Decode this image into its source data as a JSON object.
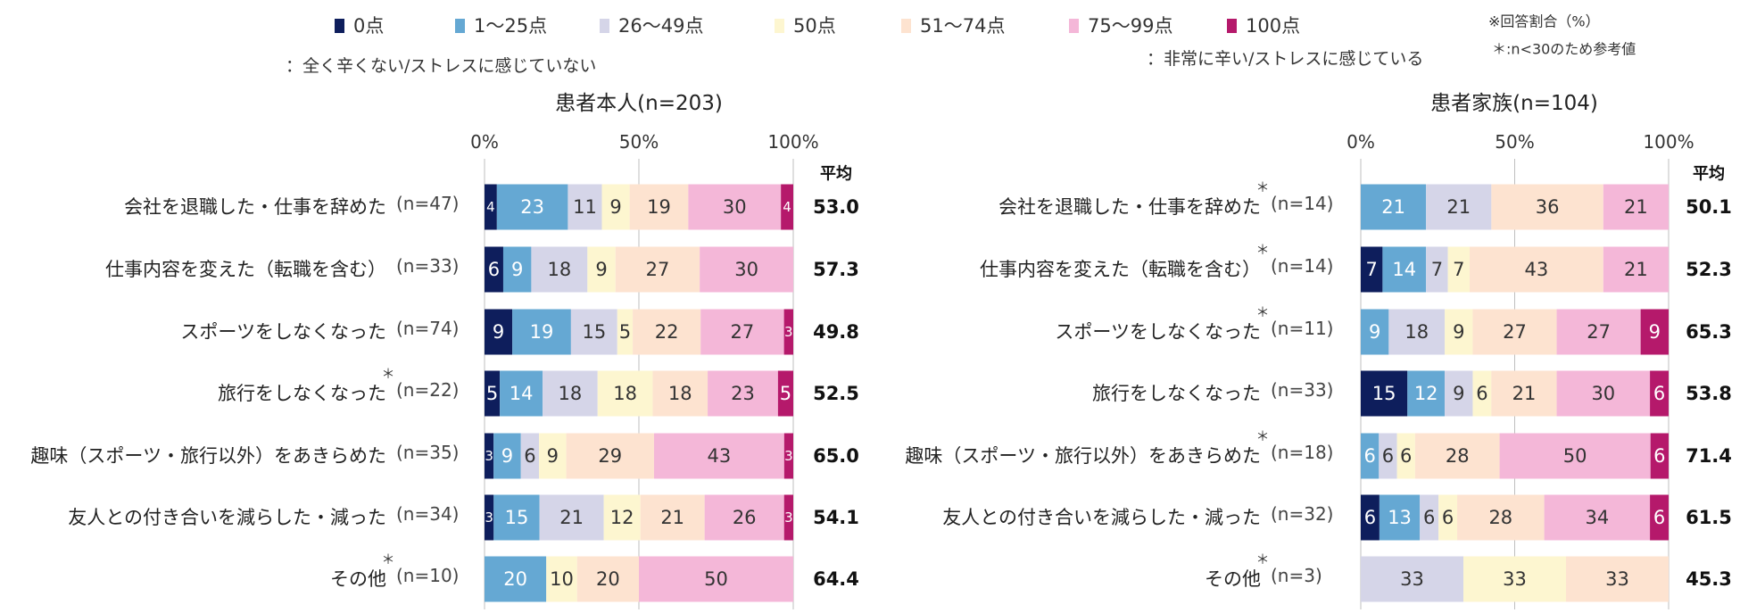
{
  "legend": {
    "items": [
      {
        "label": "0点",
        "color": "#0e1e5c"
      },
      {
        "label": "1〜25点",
        "color": "#65a8d3"
      },
      {
        "label": "26〜49点",
        "color": "#d5d5e8"
      },
      {
        "label": "50点",
        "color": "#fdf6d0"
      },
      {
        "label": "51〜74点",
        "color": "#fde3d0"
      },
      {
        "label": "75〜99点",
        "color": "#f4b7d8"
      },
      {
        "label": "100点",
        "color": "#b5196b"
      }
    ],
    "low_note": "：全く辛くない/ストレスに感じていない",
    "high_note": "：非常に辛い/ストレスに感じている",
    "note_ratio": "※回答割合（%）",
    "note_small_n": "＊:n<30のため参考値"
  },
  "avg_header": "平均",
  "chart_data": [
    {
      "type": "bar",
      "orientation": "horizontal-stacked-100",
      "title": "患者本人(n=203)",
      "ticks": [
        "0%",
        "50%",
        "100%"
      ],
      "xlim": [
        0,
        100
      ],
      "series_names": [
        "0点",
        "1〜25点",
        "26〜49点",
        "50点",
        "51〜74点",
        "75〜99点",
        "100点"
      ],
      "categories": [
        {
          "label": "会社を退職した・仕事を辞めた",
          "n": "(n=47)",
          "star": false,
          "values": [
            4,
            23,
            11,
            9,
            19,
            30,
            4
          ],
          "avg": "53.0"
        },
        {
          "label": "仕事内容を変えた（転職を含む）",
          "n": "(n=33)",
          "star": false,
          "values": [
            6,
            9,
            18,
            9,
            27,
            30,
            0
          ],
          "avg": "57.3"
        },
        {
          "label": "スポーツをしなくなった",
          "n": "(n=74)",
          "star": false,
          "values": [
            9,
            19,
            15,
            5,
            22,
            27,
            3
          ],
          "avg": "49.8"
        },
        {
          "label": "旅行をしなくなった",
          "n": "(n=22)",
          "star": true,
          "values": [
            5,
            14,
            18,
            18,
            18,
            23,
            5
          ],
          "avg": "52.5"
        },
        {
          "label": "趣味（スポーツ・旅行以外）をあきらめた",
          "n": "(n=35)",
          "star": false,
          "values": [
            3,
            9,
            6,
            9,
            29,
            43,
            3
          ],
          "avg": "65.0"
        },
        {
          "label": "友人との付き合いを減らした・減った",
          "n": "(n=34)",
          "star": false,
          "values": [
            3,
            15,
            21,
            12,
            21,
            26,
            3
          ],
          "avg": "54.1"
        },
        {
          "label": "その他",
          "n": "(n=10)",
          "star": true,
          "values": [
            0,
            20,
            0,
            10,
            20,
            50,
            0
          ],
          "avg": "64.4"
        }
      ]
    },
    {
      "type": "bar",
      "orientation": "horizontal-stacked-100",
      "title": "患者家族(n=104)",
      "ticks": [
        "0%",
        "50%",
        "100%"
      ],
      "xlim": [
        0,
        100
      ],
      "series_names": [
        "0点",
        "1〜25点",
        "26〜49点",
        "50点",
        "51〜74点",
        "75〜99点",
        "100点"
      ],
      "categories": [
        {
          "label": "会社を退職した・仕事を辞めた",
          "n": "(n=14)",
          "star": true,
          "values": [
            0,
            21,
            21,
            0,
            36,
            21,
            0
          ],
          "avg": "50.1"
        },
        {
          "label": "仕事内容を変えた（転職を含む）",
          "n": "(n=14)",
          "star": true,
          "values": [
            7,
            14,
            7,
            7,
            43,
            21,
            0
          ],
          "avg": "52.3"
        },
        {
          "label": "スポーツをしなくなった",
          "n": "(n=11)",
          "star": true,
          "values": [
            0,
            9,
            18,
            9,
            27,
            27,
            9
          ],
          "avg": "65.3"
        },
        {
          "label": "旅行をしなくなった",
          "n": "(n=33)",
          "star": false,
          "values": [
            15,
            12,
            9,
            6,
            21,
            30,
            6
          ],
          "avg": "53.8"
        },
        {
          "label": "趣味（スポーツ・旅行以外）をあきらめた",
          "n": "(n=18)",
          "star": true,
          "values": [
            0,
            6,
            6,
            6,
            28,
            50,
            6
          ],
          "avg": "71.4"
        },
        {
          "label": "友人との付き合いを減らした・減った",
          "n": "(n=32)",
          "star": false,
          "values": [
            6,
            13,
            6,
            6,
            28,
            34,
            6
          ],
          "avg": "61.5"
        },
        {
          "label": "その他",
          "n": "(n=3)",
          "star": true,
          "values": [
            0,
            0,
            33,
            33,
            33,
            0,
            0
          ],
          "avg": "45.3"
        }
      ]
    }
  ]
}
